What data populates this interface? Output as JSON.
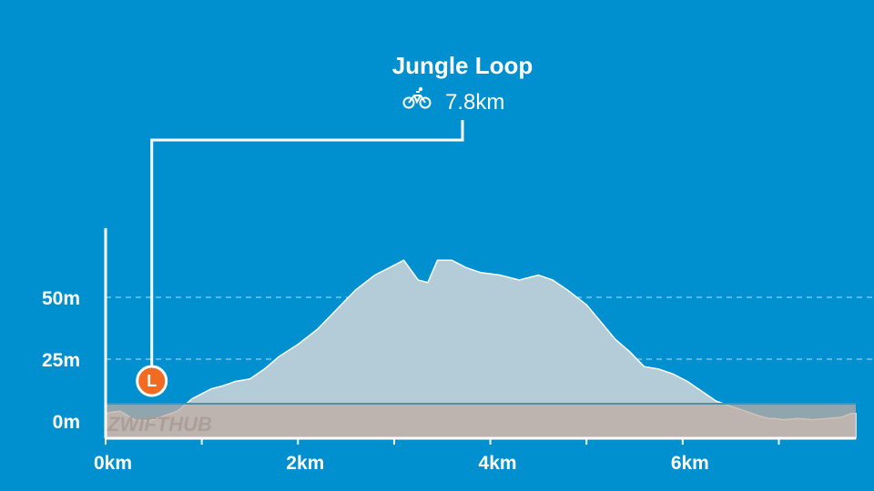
{
  "header": {
    "route_name": "Jungle Loop",
    "distance": "7.8km",
    "sport_icon": "bicycle-icon"
  },
  "marker": {
    "label": "L",
    "color": "#f26b22",
    "x_km": 0.48
  },
  "watermark": "ZWIFTHUB",
  "colors": {
    "background": "#0090d0",
    "profile_fill": "#b3ccd8",
    "water_band": "#c0aca2",
    "water_band_edge": "#4f8fa8",
    "axis": "#ffffff"
  },
  "chart_data": {
    "type": "area",
    "title": "",
    "xlabel": "",
    "ylabel": "",
    "xlim": [
      0,
      7.8
    ],
    "ylim": [
      -7,
      78
    ],
    "x_ticks": [
      {
        "value": 0,
        "label": "0km"
      },
      {
        "value": 2,
        "label": "2km"
      },
      {
        "value": 4,
        "label": "4km"
      },
      {
        "value": 6,
        "label": "6km"
      }
    ],
    "x_minor_ticks": [
      1,
      3,
      5,
      7
    ],
    "y_ticks": [
      {
        "value": 0,
        "label": "0m"
      },
      {
        "value": 25,
        "label": "25m"
      },
      {
        "value": 50,
        "label": "50m"
      }
    ],
    "y_gridlines": [
      25,
      50
    ],
    "band": {
      "from": -7,
      "to": 7
    },
    "series": [
      {
        "x": [
          0,
          0.05,
          0.15,
          0.3,
          0.45,
          0.6,
          0.75,
          0.9,
          1.0,
          1.1,
          1.2,
          1.35,
          1.5,
          1.65,
          1.8,
          2.0,
          2.2,
          2.4,
          2.6,
          2.8,
          2.95,
          3.1,
          3.25,
          3.35,
          3.45,
          3.6,
          3.75,
          3.9,
          4.1,
          4.3,
          4.5,
          4.65,
          4.8,
          5.0,
          5.15,
          5.3,
          5.45,
          5.6,
          5.75,
          5.9,
          6.05,
          6.2,
          6.35,
          6.5,
          6.65,
          6.8,
          6.9,
          6.95,
          7.05,
          7.2,
          7.35,
          7.5,
          7.65,
          7.75,
          7.8
        ],
        "y": [
          3,
          3.5,
          4,
          0.5,
          0,
          2,
          4,
          9,
          11,
          13,
          14,
          16,
          17,
          21,
          26,
          31,
          37,
          45,
          53,
          59,
          62,
          65,
          57,
          56,
          65,
          65,
          62,
          60,
          59,
          57,
          59,
          57,
          53,
          47,
          40,
          33,
          28,
          22,
          21,
          19,
          16,
          12,
          8,
          6,
          4,
          2,
          1,
          1,
          0.5,
          1,
          0.5,
          1,
          1.5,
          3,
          3
        ]
      }
    ]
  }
}
